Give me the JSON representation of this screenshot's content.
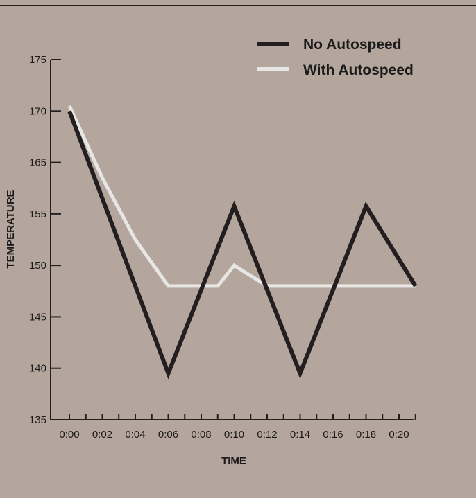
{
  "chart_data": {
    "type": "line",
    "xlabel": "TIME",
    "ylabel": "TEMPERATURE",
    "x_tick_labels": [
      "0:00",
      "0:02",
      "0:04",
      "0:06",
      "0:08",
      "0:10",
      "0:12",
      "0:14",
      "0:16",
      "0:18",
      "0:20"
    ],
    "y_tick_labels": [
      "135",
      "140",
      "145",
      "150",
      "155",
      "165",
      "170",
      "175"
    ],
    "legend_position": "top-right",
    "grid": false,
    "series": [
      {
        "name": "No Autospeed",
        "color": "#231f20",
        "points": [
          {
            "x": "0:00",
            "y": 170
          },
          {
            "x": "0:06",
            "y": 139.5
          },
          {
            "x": "0:10",
            "y": 156.5
          },
          {
            "x": "0:14",
            "y": 139.5
          },
          {
            "x": "0:18",
            "y": 156.5
          },
          {
            "x": "0:21",
            "y": 148
          }
        ]
      },
      {
        "name": "With Autospeed",
        "color": "#e6e6e4",
        "points": [
          {
            "x": "0:00",
            "y": 170.5
          },
          {
            "x": "0:02",
            "y": 162
          },
          {
            "x": "0:04",
            "y": 152.5
          },
          {
            "x": "0:06",
            "y": 148
          },
          {
            "x": "0:09",
            "y": 148
          },
          {
            "x": "0:10",
            "y": 150
          },
          {
            "x": "0:12",
            "y": 148
          },
          {
            "x": "0:21",
            "y": 148
          }
        ]
      }
    ]
  }
}
